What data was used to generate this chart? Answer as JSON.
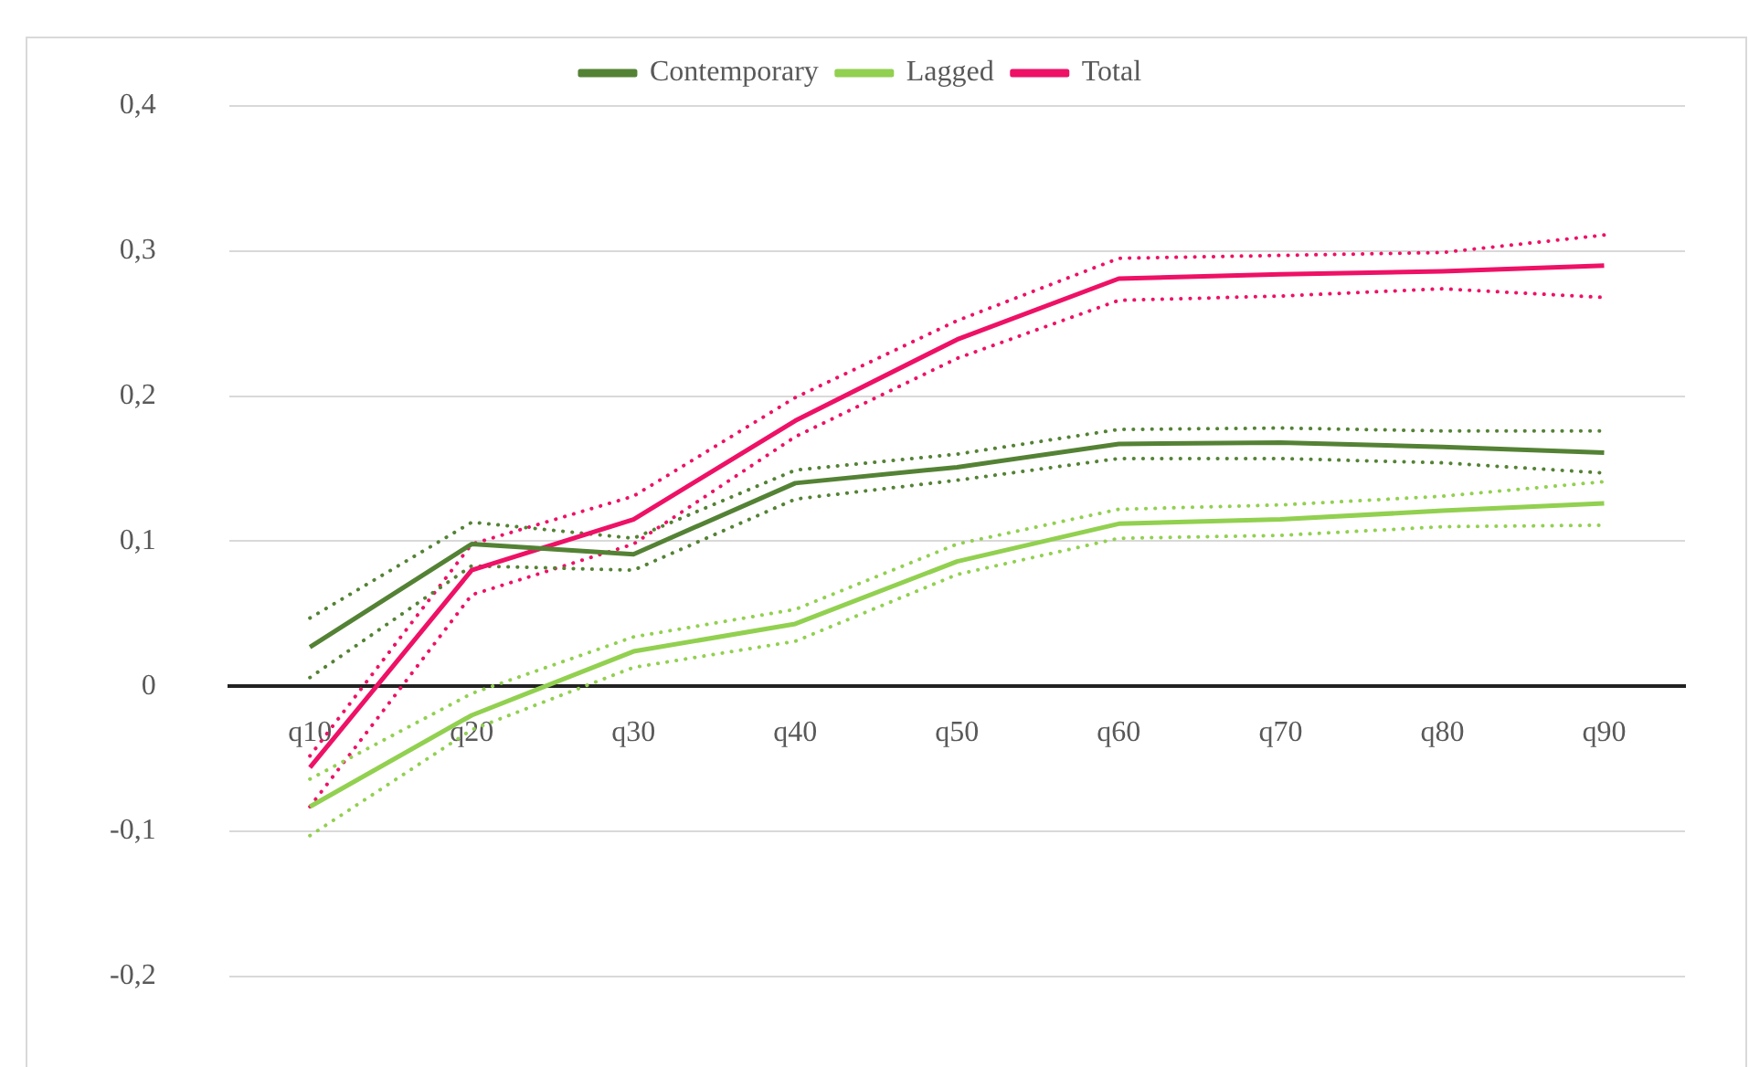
{
  "chart_data": {
    "type": "line",
    "categories": [
      "q10",
      "q20",
      "q30",
      "q40",
      "q50",
      "q60",
      "q70",
      "q80",
      "q90"
    ],
    "series": [
      {
        "name": "Contemporary",
        "color": "#548235",
        "values": [
          0.027,
          0.098,
          0.091,
          0.14,
          0.151,
          0.167,
          0.168,
          0.165,
          0.161
        ]
      },
      {
        "name": "Lagged",
        "color": "#92d050",
        "values": [
          -0.083,
          -0.02,
          0.024,
          0.043,
          0.086,
          0.112,
          0.115,
          0.121,
          0.126
        ]
      },
      {
        "name": "Total",
        "color": "#ee1166",
        "values": [
          -0.056,
          0.08,
          0.115,
          0.183,
          0.239,
          0.281,
          0.284,
          0.286,
          0.29
        ]
      },
      {
        "color": "#548235",
        "line_style": "dotted",
        "values": [
          0.047,
          0.113,
          0.102,
          0.149,
          0.16,
          0.177,
          0.178,
          0.176,
          0.176
        ]
      },
      {
        "color": "#548235",
        "line_style": "dotted",
        "values": [
          0.006,
          0.083,
          0.08,
          0.129,
          0.142,
          0.157,
          0.157,
          0.154,
          0.147
        ]
      },
      {
        "color": "#92d050",
        "line_style": "dotted",
        "values": [
          -0.064,
          -0.005,
          0.034,
          0.053,
          0.098,
          0.122,
          0.125,
          0.131,
          0.141
        ]
      },
      {
        "color": "#92d050",
        "line_style": "dotted",
        "values": [
          -0.103,
          -0.03,
          0.013,
          0.031,
          0.077,
          0.102,
          0.104,
          0.11,
          0.111
        ]
      },
      {
        "color": "#ee1166",
        "line_style": "dotted",
        "values": [
          -0.048,
          0.098,
          0.131,
          0.199,
          0.252,
          0.295,
          0.297,
          0.299,
          0.311
        ]
      },
      {
        "color": "#ee1166",
        "line_style": "dotted",
        "values": [
          -0.083,
          0.063,
          0.098,
          0.172,
          0.226,
          0.266,
          0.269,
          0.274,
          0.268
        ]
      }
    ],
    "ylim": [
      -0.2,
      0.4
    ],
    "yticks": [
      {
        "value": -0.2,
        "label": "-0,2"
      },
      {
        "value": -0.1,
        "label": "-0,1"
      },
      {
        "value": 0,
        "label": "0"
      },
      {
        "value": 0.1,
        "label": "0,1"
      },
      {
        "value": 0.2,
        "label": "0,2"
      },
      {
        "value": 0.3,
        "label": "0,3"
      },
      {
        "value": 0.4,
        "label": "0,4"
      }
    ],
    "grid": "y",
    "legend": "top",
    "marker": "none",
    "line_style": "solid"
  }
}
